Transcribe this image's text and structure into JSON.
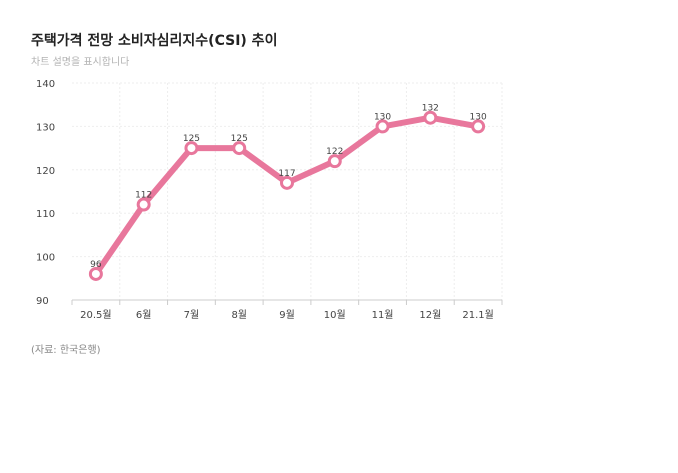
{
  "title": "주택가격 전망 소비자심리지수(CSI) 추이",
  "subtitle": "차트 설명을 표시합니다",
  "source": "(자료: 한국은행)",
  "colors": {
    "line": "#e8779c",
    "marker_fill": "#ffffff"
  },
  "chart_data": {
    "type": "line",
    "title": "주택가격 전망 소비자심리지수(CSI) 추이",
    "categories": [
      "20.5월",
      "6월",
      "7월",
      "8월",
      "9월",
      "10월",
      "11월",
      "12월",
      "21.1월"
    ],
    "series": [
      {
        "values": [
          96,
          112,
          125,
          125,
          117,
          122,
          130,
          132,
          130
        ]
      }
    ],
    "ylim": [
      90,
      140
    ],
    "yticks": [
      90,
      100,
      110,
      120,
      130,
      140
    ],
    "grid": true,
    "legend": "none",
    "data_labels": true
  }
}
